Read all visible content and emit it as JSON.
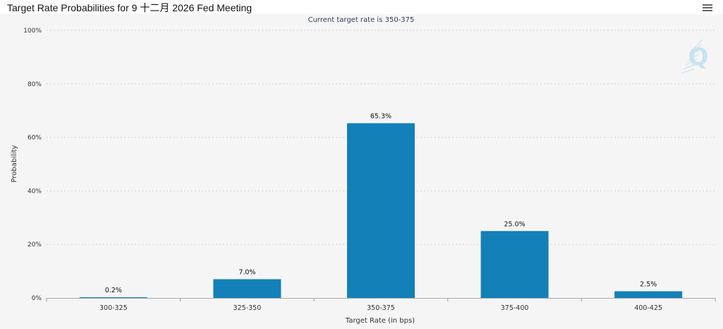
{
  "header": {
    "title": "Target Rate Probabilities for 9 十二月 2026 Fed Meeting",
    "menu_icon": "hamburger-menu-icon"
  },
  "watermark": {
    "text": "Q"
  },
  "colors": {
    "bar": "#1380b8",
    "plot_background": "#f5f5f5",
    "gridline": "#d0d0d0",
    "watermark": "#c9e3ee"
  },
  "chart_data": {
    "type": "bar",
    "title": "Target Rate Probabilities for 9 十二月 2026 Fed Meeting",
    "subtitle": "Current target rate is 350-375",
    "xlabel": "Target Rate (in bps)",
    "ylabel": "Probability",
    "categories": [
      "300-325",
      "325-350",
      "350-375",
      "375-400",
      "400-425"
    ],
    "values": [
      0.2,
      7.0,
      65.3,
      25.0,
      2.5
    ],
    "data_labels": [
      "0.2%",
      "7.0%",
      "65.3%",
      "25.0%",
      "2.5%"
    ],
    "ylim": [
      0,
      100
    ],
    "yticks": [
      0,
      20,
      40,
      60,
      80,
      100
    ],
    "ytick_labels": [
      "0%",
      "20%",
      "40%",
      "60%",
      "80%",
      "100%"
    ],
    "grid": true,
    "legend": false
  }
}
